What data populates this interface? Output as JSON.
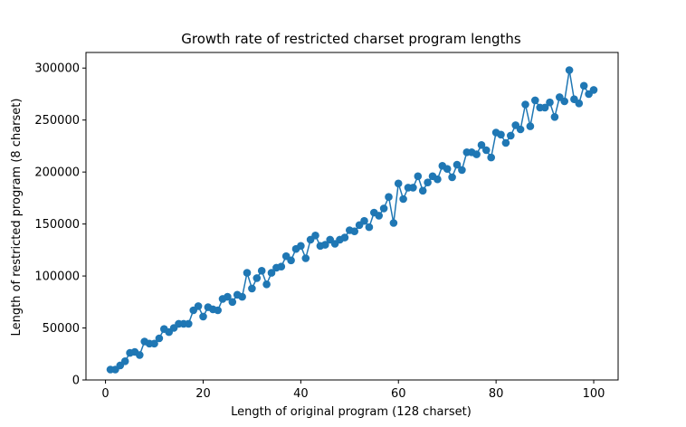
{
  "chart_data": {
    "type": "line",
    "title": "Growth rate of restricted charset program lengths",
    "xlabel": "Length of original program (128 charset)",
    "ylabel": "Length of restricted program (8 charset)",
    "xlim": [
      -4,
      105
    ],
    "ylim": [
      0,
      315000
    ],
    "xticks": [
      0,
      20,
      40,
      60,
      80,
      100
    ],
    "yticks": [
      0,
      50000,
      100000,
      150000,
      200000,
      250000,
      300000
    ],
    "grid": false,
    "color": "#1f77b4",
    "marker": "circle",
    "series": [
      {
        "x": [
          1,
          2,
          3,
          4,
          5,
          6,
          7,
          8,
          9,
          10,
          11,
          12,
          13,
          14,
          15,
          16,
          17,
          18,
          19,
          20,
          21,
          22,
          23,
          24,
          25,
          26,
          27,
          28,
          29,
          30,
          31,
          32,
          33,
          34,
          35,
          36,
          37,
          38,
          39,
          40,
          41,
          42,
          43,
          44,
          45,
          46,
          47,
          48,
          49,
          50,
          51,
          52,
          53,
          54,
          55,
          56,
          57,
          58,
          59,
          60,
          61,
          62,
          63,
          64,
          65,
          66,
          67,
          68,
          69,
          70,
          71,
          72,
          73,
          74,
          75,
          76,
          77,
          78,
          79,
          80,
          81,
          82,
          83,
          84,
          85,
          86,
          87,
          88,
          89,
          90,
          91,
          92,
          93,
          94,
          95,
          96,
          97,
          98,
          99,
          100
        ],
        "values": [
          10000,
          10000,
          14000,
          18000,
          26000,
          27000,
          24000,
          37000,
          35000,
          35000,
          40000,
          49000,
          46000,
          50000,
          54000,
          54000,
          54000,
          67000,
          71000,
          61000,
          70000,
          68000,
          67000,
          78000,
          80000,
          75000,
          82000,
          80000,
          103000,
          88000,
          98000,
          105000,
          92000,
          103000,
          108000,
          109000,
          119000,
          115000,
          126000,
          129000,
          117000,
          135000,
          139000,
          129000,
          130000,
          135000,
          131000,
          135000,
          137000,
          144000,
          143000,
          149000,
          153000,
          147000,
          161000,
          158000,
          165000,
          176000,
          151000,
          189000,
          174000,
          185000,
          185000,
          196000,
          182000,
          190000,
          196000,
          193000,
          206000,
          203000,
          195000,
          207000,
          202000,
          219000,
          219000,
          217000,
          226000,
          221000,
          214000,
          238000,
          236000,
          228000,
          235000,
          245000,
          241000,
          265000,
          244000,
          269000,
          262000,
          262000,
          267000,
          253000,
          272000,
          268000,
          298000,
          270000,
          266000,
          283000,
          275000,
          279000
        ]
      }
    ]
  }
}
